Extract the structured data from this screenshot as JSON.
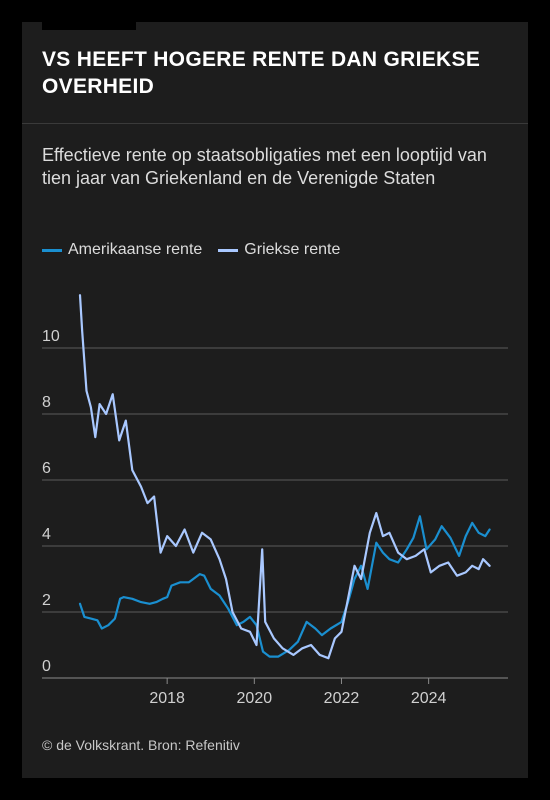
{
  "title": "VS HEEFT HOGERE RENTE DAN GRIEKSE OVERHEID",
  "subtitle": "Effectieve rente op staatsobligaties met een looptijd van tien jaar van Griekenland en de Verenigde Staten",
  "source": "© de Volkskrant. Bron: Refenitiv",
  "colors": {
    "background": "#1d1d1d",
    "us_series": "#1a8fd0",
    "greek_series": "#a9c8ff"
  },
  "chart_data": {
    "type": "line",
    "title": "VS HEEFT HOGERE RENTE DAN GRIEKSE OVERHEID",
    "subtitle": "Effectieve rente op staatsobligaties met een looptijd van tien jaar van Griekenland en de Verenigde Staten",
    "xlabel": "",
    "ylabel": "",
    "xlim": [
      2016.0,
      2025.5
    ],
    "ylim": [
      0,
      12
    ],
    "x_ticks": [
      "2018",
      "2020",
      "2022",
      "2024"
    ],
    "x_tick_values": [
      2018,
      2020,
      2022,
      2024
    ],
    "y_ticks": [
      "0",
      "2",
      "4",
      "6",
      "8",
      "10"
    ],
    "y_tick_values": [
      0,
      2,
      4,
      6,
      8,
      10
    ],
    "grid": "horizontal",
    "legend_position": "top-left",
    "series": [
      {
        "name": "Amerikaanse rente",
        "color": "#1a8fd0",
        "points": [
          [
            2016.0,
            2.25
          ],
          [
            2016.1,
            1.85
          ],
          [
            2016.25,
            1.8
          ],
          [
            2016.4,
            1.75
          ],
          [
            2016.5,
            1.5
          ],
          [
            2016.65,
            1.6
          ],
          [
            2016.8,
            1.8
          ],
          [
            2016.92,
            2.4
          ],
          [
            2017.0,
            2.45
          ],
          [
            2017.2,
            2.4
          ],
          [
            2017.4,
            2.3
          ],
          [
            2017.6,
            2.25
          ],
          [
            2017.75,
            2.3
          ],
          [
            2017.9,
            2.4
          ],
          [
            2018.0,
            2.45
          ],
          [
            2018.1,
            2.8
          ],
          [
            2018.3,
            2.9
          ],
          [
            2018.5,
            2.9
          ],
          [
            2018.75,
            3.15
          ],
          [
            2018.85,
            3.1
          ],
          [
            2019.0,
            2.7
          ],
          [
            2019.2,
            2.5
          ],
          [
            2019.4,
            2.1
          ],
          [
            2019.6,
            1.6
          ],
          [
            2019.75,
            1.7
          ],
          [
            2019.9,
            1.85
          ],
          [
            2020.05,
            1.6
          ],
          [
            2020.2,
            0.8
          ],
          [
            2020.35,
            0.65
          ],
          [
            2020.55,
            0.65
          ],
          [
            2020.8,
            0.85
          ],
          [
            2021.0,
            1.1
          ],
          [
            2021.2,
            1.7
          ],
          [
            2021.4,
            1.5
          ],
          [
            2021.55,
            1.3
          ],
          [
            2021.75,
            1.5
          ],
          [
            2022.0,
            1.7
          ],
          [
            2022.15,
            2.3
          ],
          [
            2022.3,
            3.0
          ],
          [
            2022.45,
            3.4
          ],
          [
            2022.6,
            2.7
          ],
          [
            2022.8,
            4.1
          ],
          [
            2022.95,
            3.8
          ],
          [
            2023.1,
            3.6
          ],
          [
            2023.3,
            3.5
          ],
          [
            2023.5,
            3.9
          ],
          [
            2023.65,
            4.25
          ],
          [
            2023.8,
            4.9
          ],
          [
            2023.95,
            3.9
          ],
          [
            2024.15,
            4.2
          ],
          [
            2024.3,
            4.6
          ],
          [
            2024.5,
            4.25
          ],
          [
            2024.7,
            3.7
          ],
          [
            2024.85,
            4.3
          ],
          [
            2025.0,
            4.7
          ],
          [
            2025.15,
            4.4
          ],
          [
            2025.3,
            4.3
          ],
          [
            2025.4,
            4.5
          ]
        ]
      },
      {
        "name": "Griekse rente",
        "color": "#a9c8ff",
        "points": [
          [
            2016.0,
            11.6
          ],
          [
            2016.05,
            10.5
          ],
          [
            2016.15,
            8.7
          ],
          [
            2016.25,
            8.2
          ],
          [
            2016.35,
            7.3
          ],
          [
            2016.45,
            8.3
          ],
          [
            2016.6,
            8.0
          ],
          [
            2016.75,
            8.6
          ],
          [
            2016.9,
            7.2
          ],
          [
            2017.05,
            7.8
          ],
          [
            2017.2,
            6.3
          ],
          [
            2017.4,
            5.8
          ],
          [
            2017.55,
            5.3
          ],
          [
            2017.7,
            5.5
          ],
          [
            2017.85,
            3.8
          ],
          [
            2018.0,
            4.3
          ],
          [
            2018.2,
            4.0
          ],
          [
            2018.4,
            4.5
          ],
          [
            2018.6,
            3.8
          ],
          [
            2018.8,
            4.4
          ],
          [
            2019.0,
            4.2
          ],
          [
            2019.2,
            3.6
          ],
          [
            2019.35,
            3.0
          ],
          [
            2019.5,
            2.0
          ],
          [
            2019.7,
            1.5
          ],
          [
            2019.9,
            1.4
          ],
          [
            2020.05,
            1.0
          ],
          [
            2020.18,
            3.9
          ],
          [
            2020.25,
            1.7
          ],
          [
            2020.45,
            1.2
          ],
          [
            2020.65,
            0.9
          ],
          [
            2020.9,
            0.7
          ],
          [
            2021.1,
            0.9
          ],
          [
            2021.3,
            1.0
          ],
          [
            2021.5,
            0.7
          ],
          [
            2021.7,
            0.6
          ],
          [
            2021.85,
            1.2
          ],
          [
            2022.0,
            1.4
          ],
          [
            2022.15,
            2.4
          ],
          [
            2022.3,
            3.4
          ],
          [
            2022.45,
            3.0
          ],
          [
            2022.65,
            4.4
          ],
          [
            2022.8,
            5.0
          ],
          [
            2022.95,
            4.3
          ],
          [
            2023.1,
            4.4
          ],
          [
            2023.3,
            3.8
          ],
          [
            2023.5,
            3.6
          ],
          [
            2023.7,
            3.7
          ],
          [
            2023.9,
            3.9
          ],
          [
            2024.05,
            3.2
          ],
          [
            2024.25,
            3.4
          ],
          [
            2024.45,
            3.5
          ],
          [
            2024.65,
            3.1
          ],
          [
            2024.85,
            3.2
          ],
          [
            2025.0,
            3.4
          ],
          [
            2025.15,
            3.3
          ],
          [
            2025.25,
            3.6
          ],
          [
            2025.4,
            3.4
          ]
        ]
      }
    ]
  }
}
